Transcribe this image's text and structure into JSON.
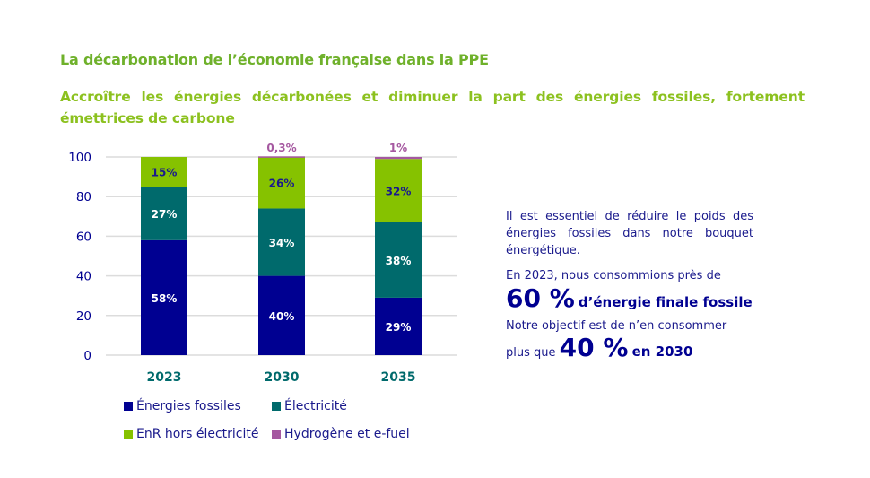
{
  "header": {
    "title": "La décarbonation de l’économie française dans la PPE",
    "subtitle": "Accroître les énergies décarbonées et diminuer la part des énergies fossiles, fortement émettrices de carbone"
  },
  "chart_data": {
    "type": "bar",
    "stacked": true,
    "title": "",
    "xlabel": "",
    "ylabel": "",
    "ylim": [
      0,
      100
    ],
    "yticks": [
      0,
      20,
      40,
      60,
      80,
      100
    ],
    "grid": true,
    "legend_position": "bottom",
    "categories": [
      "2023",
      "2030",
      "2035"
    ],
    "series": [
      {
        "name": "Énergies fossiles",
        "color": "#000091",
        "label_color": "#ffffff",
        "values": [
          58,
          40,
          29
        ],
        "labels": [
          "58%",
          "40%",
          "29%"
        ]
      },
      {
        "name": "Électricité",
        "color": "#006a6c",
        "label_color": "#ffffff",
        "values": [
          27,
          34,
          38
        ],
        "labels": [
          "27%",
          "34%",
          "38%"
        ]
      },
      {
        "name": "EnR hors électricité",
        "color": "#86c200",
        "label_color": "#1a1a8c",
        "values": [
          15,
          26,
          32
        ],
        "labels": [
          "15%",
          "26%",
          "32%"
        ]
      },
      {
        "name": "Hydrogène et e-fuel",
        "color": "#a558a0",
        "label_color": "#a558a0",
        "values": [
          0,
          0.3,
          1
        ],
        "labels": [
          "",
          "0,3%",
          "1%"
        ]
      }
    ]
  },
  "side_panel": {
    "paragraph1": "Il est essentiel de réduire le poids des énergies fossiles dans notre bouquet énergétique.",
    "paragraph2": "En 2023, nous consommions près de",
    "highlight1_value": "60 %",
    "highlight1_text": "d’énergie finale fossile",
    "paragraph3": "Notre objectif est de n’en consommer",
    "paragraph4_prefix": "plus que",
    "highlight2_value": "40 %",
    "highlight2_text": "en 2030"
  },
  "colors": {
    "title": "#6fb12b",
    "subtitle": "#8cc11f",
    "axis_text": "#000091",
    "category_text": "#006a6c",
    "gridline": "#dcdcdc"
  }
}
